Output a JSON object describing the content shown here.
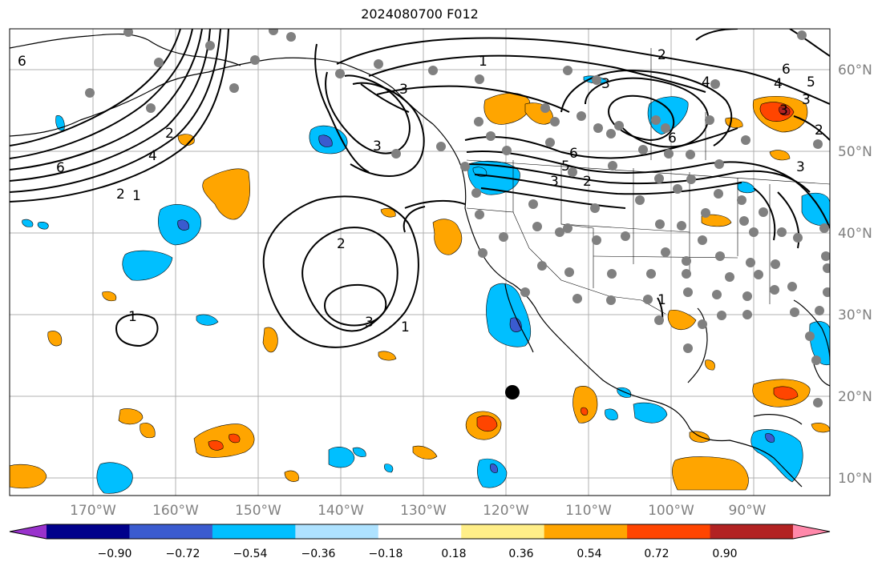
{
  "title": "2024080700 F012",
  "longitude_labels": [
    "170°W",
    "160°W",
    "150°W",
    "140°W",
    "130°W",
    "120°W",
    "110°W",
    "100°W",
    "90°W"
  ],
  "latitude_labels": [
    "60°N",
    "50°N",
    "40°N",
    "30°N",
    "20°N",
    "10°N"
  ],
  "colorbar": {
    "tick_labels": [
      "−0.90",
      "−0.72",
      "−0.54",
      "−0.36",
      "−0.18",
      "0.18",
      "0.36",
      "0.54",
      "0.72",
      "0.90"
    ],
    "colors": [
      "#9932cc",
      "#00008b",
      "#3a5bcf",
      "#00bfff",
      "#aee2ff",
      "#ffffff",
      "#ffee88",
      "#ffa500",
      "#ff4500",
      "#b22222",
      "#ff88aa"
    ]
  },
  "contour_labels": [
    "1",
    "2",
    "3",
    "4",
    "5",
    "6"
  ],
  "fill_colors": {
    "light_blue": "#00bfff",
    "medium_blue": "#3a5bcf",
    "orange": "#ffa500",
    "red_orange": "#ff4500",
    "dark_red": "#b22222"
  },
  "marker_color": "#808080",
  "center_marker_color": "#000000"
}
